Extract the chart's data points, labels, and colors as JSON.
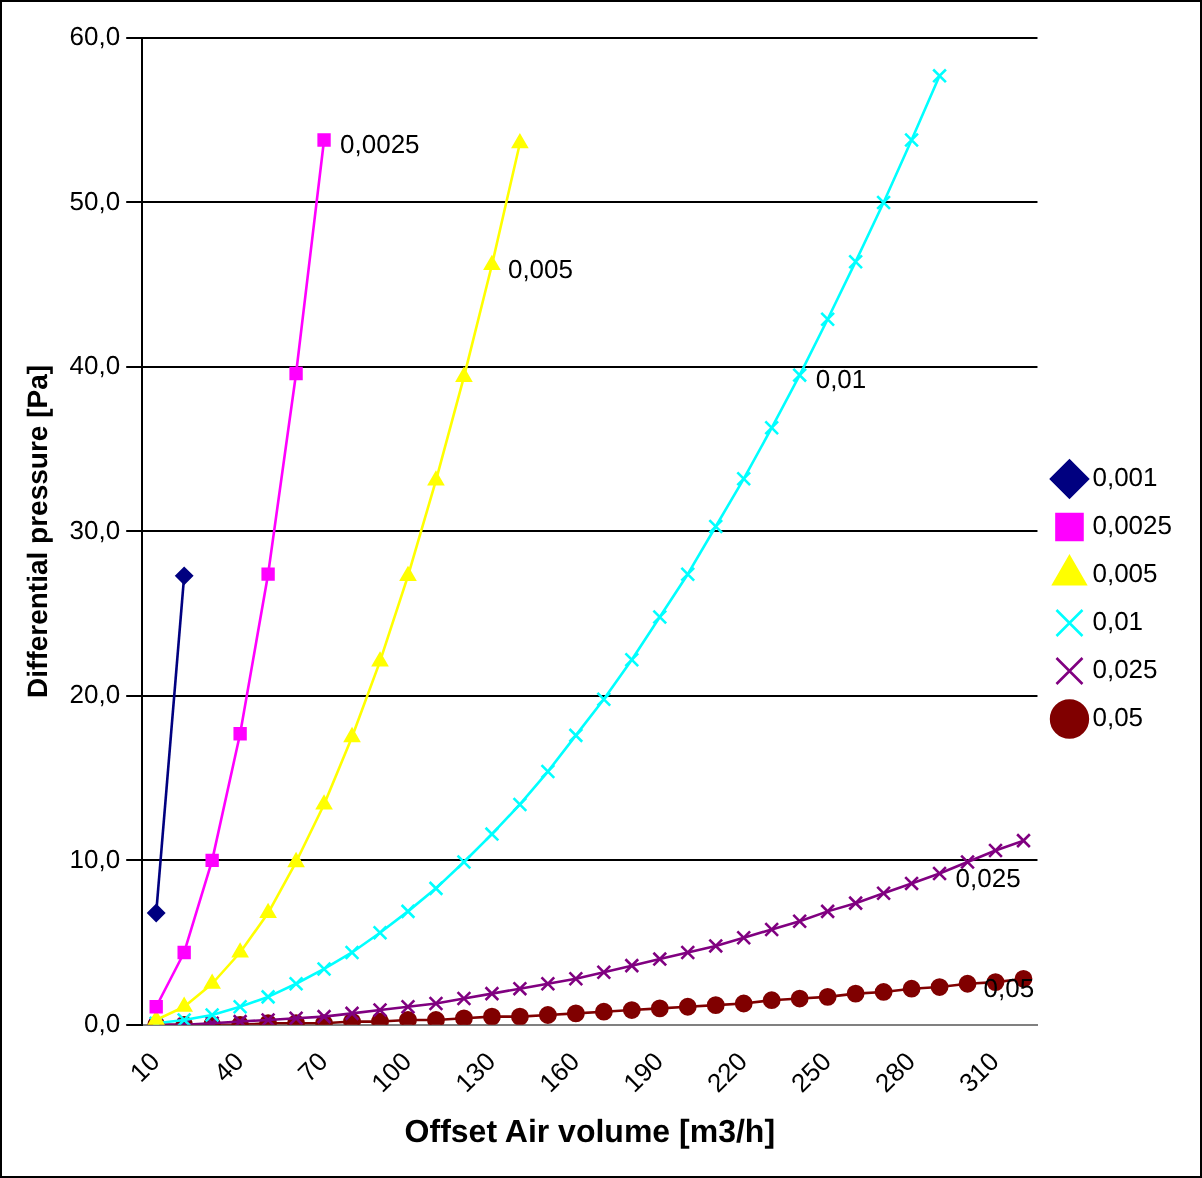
{
  "chart_data": {
    "type": "line",
    "xlabel": "Offset Air volume [m3/h]",
    "ylabel": "Differential pressure [Pa]",
    "x": [
      10,
      20,
      30,
      40,
      50,
      60,
      70,
      80,
      90,
      100,
      110,
      120,
      130,
      140,
      150,
      160,
      170,
      180,
      190,
      200,
      210,
      220,
      230,
      240,
      250,
      260,
      270,
      280,
      290,
      300,
      310,
      320
    ],
    "xlim": [
      5,
      325
    ],
    "xticks": [
      10,
      40,
      70,
      100,
      130,
      160,
      190,
      220,
      250,
      280,
      310
    ],
    "ylim": [
      0,
      60
    ],
    "yticks": [
      {
        "value": 0,
        "label": "0,0"
      },
      {
        "value": 10,
        "label": "10,0"
      },
      {
        "value": 20,
        "label": "20,0"
      },
      {
        "value": 30,
        "label": "30,0"
      },
      {
        "value": 40,
        "label": "40,0"
      },
      {
        "value": 50,
        "label": "50,0"
      },
      {
        "value": 60,
        "label": "60,0"
      }
    ],
    "grid": "y",
    "legend": "right",
    "series": [
      {
        "name": "0,001",
        "color": "#000080",
        "marker": "diamond",
        "values": [
          6.8,
          27.3,
          null,
          null,
          null,
          null,
          null,
          null,
          null,
          null,
          null,
          null,
          null,
          null,
          null,
          null,
          null,
          null,
          null,
          null,
          null,
          null,
          null,
          null,
          null,
          null,
          null,
          null,
          null,
          null,
          null,
          null
        ]
      },
      {
        "name": "0,0025",
        "color": "#ff00ff",
        "marker": "square",
        "values": [
          1.1,
          4.4,
          10.0,
          17.7,
          27.4,
          39.6,
          53.8,
          null,
          null,
          null,
          null,
          null,
          null,
          null,
          null,
          null,
          null,
          null,
          null,
          null,
          null,
          null,
          null,
          null,
          null,
          null,
          null,
          null,
          null,
          null,
          null,
          null
        ]
      },
      {
        "name": "0,005",
        "color": "#ffff00",
        "marker": "triangle",
        "values": [
          0.3,
          1.1,
          2.5,
          4.4,
          6.8,
          9.9,
          13.4,
          17.5,
          22.1,
          27.3,
          33.1,
          39.4,
          46.2,
          53.6,
          null,
          null,
          null,
          null,
          null,
          null,
          null,
          null,
          null,
          null,
          null,
          null,
          null,
          null,
          null,
          null,
          null,
          null
        ]
      },
      {
        "name": "0,01",
        "color": "#00ffff",
        "marker": "cross",
        "values": [
          0.1,
          0.3,
          0.6,
          1.1,
          1.7,
          2.5,
          3.4,
          4.4,
          5.6,
          6.9,
          8.3,
          9.9,
          11.6,
          13.4,
          15.4,
          17.6,
          19.8,
          22.2,
          24.8,
          27.4,
          30.3,
          33.2,
          36.3,
          39.5,
          42.9,
          46.4,
          50.0,
          53.8,
          57.7,
          null,
          null,
          null
        ]
      },
      {
        "name": "0,025",
        "color": "#800080",
        "marker": "cross",
        "values": [
          0.0,
          0.0,
          0.1,
          0.2,
          0.3,
          0.4,
          0.5,
          0.7,
          0.9,
          1.1,
          1.3,
          1.6,
          1.9,
          2.2,
          2.5,
          2.8,
          3.2,
          3.6,
          4.0,
          4.4,
          4.8,
          5.3,
          5.8,
          6.3,
          6.9,
          7.4,
          8.0,
          8.6,
          9.2,
          9.9,
          10.6,
          11.2
        ]
      },
      {
        "name": "0,05",
        "color": "#800000",
        "marker": "circle",
        "values": [
          0.0,
          0.0,
          0.0,
          0.0,
          0.1,
          0.1,
          0.1,
          0.2,
          0.2,
          0.3,
          0.3,
          0.4,
          0.5,
          0.5,
          0.6,
          0.7,
          0.8,
          0.9,
          1.0,
          1.1,
          1.2,
          1.3,
          1.5,
          1.6,
          1.7,
          1.9,
          2.0,
          2.2,
          2.3,
          2.5,
          2.6,
          2.8
        ]
      }
    ],
    "annotations": [
      {
        "text": "0,0025",
        "x": 70,
        "y": 53.8
      },
      {
        "text": "0,005",
        "x": 130,
        "y": 46.2
      },
      {
        "text": "0,01",
        "x": 240,
        "y": 39.5
      },
      {
        "text": "0,025",
        "x": 290,
        "y": 9.2
      },
      {
        "text": "0,05",
        "x": 300,
        "y": 2.5
      }
    ]
  }
}
